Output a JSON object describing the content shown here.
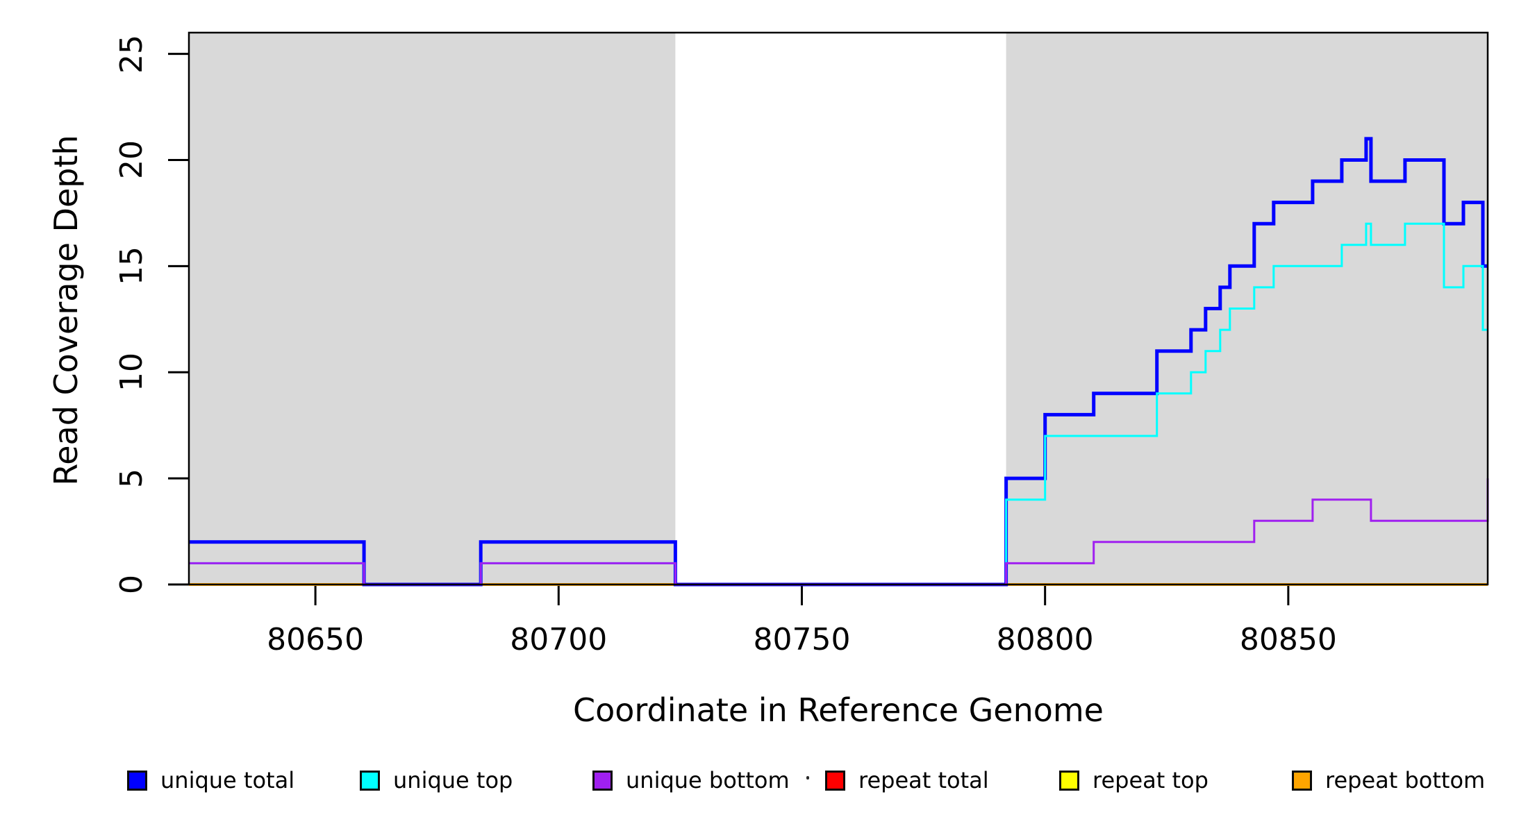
{
  "chart_data": {
    "type": "line",
    "step_mode": "post",
    "title": "",
    "xlabel": "Coordinate in Reference Genome",
    "ylabel": "Read Coverage Depth",
    "xlim": [
      80624,
      80891
    ],
    "ylim": [
      0,
      26
    ],
    "x_ticks": [
      80650,
      80700,
      80750,
      80800,
      80850
    ],
    "y_ticks": [
      0,
      5,
      10,
      15,
      20,
      25
    ],
    "grid": false,
    "background_color": "#ffffff",
    "shade_color": "#d9d9d9",
    "box_color": "#000000",
    "shaded_regions": [
      {
        "x0": 80624,
        "x1": 80724
      },
      {
        "x0": 80792,
        "x1": 80891
      }
    ],
    "series": [
      {
        "name": "unique total",
        "color": "#0000ff",
        "width": 5,
        "points": [
          [
            80624,
            2
          ],
          [
            80660,
            0
          ],
          [
            80684,
            2
          ],
          [
            80724,
            0
          ],
          [
            80792,
            5
          ],
          [
            80800,
            8
          ],
          [
            80810,
            9
          ],
          [
            80823,
            11
          ],
          [
            80830,
            12
          ],
          [
            80833,
            13
          ],
          [
            80836,
            14
          ],
          [
            80838,
            15
          ],
          [
            80843,
            17
          ],
          [
            80847,
            18
          ],
          [
            80855,
            19
          ],
          [
            80861,
            20
          ],
          [
            80866,
            21
          ],
          [
            80867,
            19
          ],
          [
            80874,
            20
          ],
          [
            80882,
            17
          ],
          [
            80886,
            18
          ],
          [
            80890,
            15
          ],
          [
            80891,
            15
          ]
        ]
      },
      {
        "name": "unique top",
        "color": "#00ffff",
        "width": 3,
        "points": [
          [
            80624,
            1
          ],
          [
            80660,
            0
          ],
          [
            80684,
            1
          ],
          [
            80724,
            0
          ],
          [
            80792,
            4
          ],
          [
            80800,
            7
          ],
          [
            80823,
            9
          ],
          [
            80830,
            10
          ],
          [
            80833,
            11
          ],
          [
            80836,
            12
          ],
          [
            80838,
            13
          ],
          [
            80843,
            14
          ],
          [
            80847,
            15
          ],
          [
            80861,
            16
          ],
          [
            80866,
            17
          ],
          [
            80867,
            16
          ],
          [
            80874,
            17
          ],
          [
            80882,
            14
          ],
          [
            80886,
            15
          ],
          [
            80890,
            12
          ],
          [
            80891,
            12
          ]
        ]
      },
      {
        "name": "unique bottom",
        "color": "#a020f0",
        "width": 3,
        "points": [
          [
            80624,
            1
          ],
          [
            80660,
            0
          ],
          [
            80684,
            1
          ],
          [
            80724,
            0
          ],
          [
            80792,
            1
          ],
          [
            80810,
            2
          ],
          [
            80843,
            3
          ],
          [
            80855,
            4
          ],
          [
            80867,
            3
          ],
          [
            80891,
            5
          ]
        ]
      },
      {
        "name": "repeat total",
        "color": "#ff0000",
        "width": 3,
        "points": [
          [
            80624,
            0
          ],
          [
            80891,
            0
          ]
        ]
      },
      {
        "name": "repeat top",
        "color": "#ffff00",
        "width": 3,
        "points": [
          [
            80624,
            0
          ],
          [
            80891,
            0
          ]
        ]
      },
      {
        "name": "repeat bottom",
        "color": "#ffa500",
        "width": 4,
        "points": [
          [
            80624,
            0
          ],
          [
            80891,
            0
          ]
        ]
      }
    ],
    "draw_order": [
      "repeat total",
      "repeat top",
      "repeat bottom",
      "unique total",
      "unique top",
      "unique bottom"
    ],
    "legend": {
      "position": "bottom",
      "entries": [
        {
          "label": "unique total",
          "color": "#0000ff"
        },
        {
          "label": "unique top",
          "color": "#00ffff"
        },
        {
          "label": "unique bottom",
          "color": "#a020f0"
        },
        {
          "label": "repeat total",
          "color": "#ff0000"
        },
        {
          "label": "repeat top",
          "color": "#ffff00"
        },
        {
          "label": "repeat bottom",
          "color": "#ffa500"
        }
      ],
      "artifact_dot": "·"
    }
  },
  "axes": {
    "x_label": "Coordinate in Reference Genome",
    "y_label": "Read Coverage Depth"
  }
}
